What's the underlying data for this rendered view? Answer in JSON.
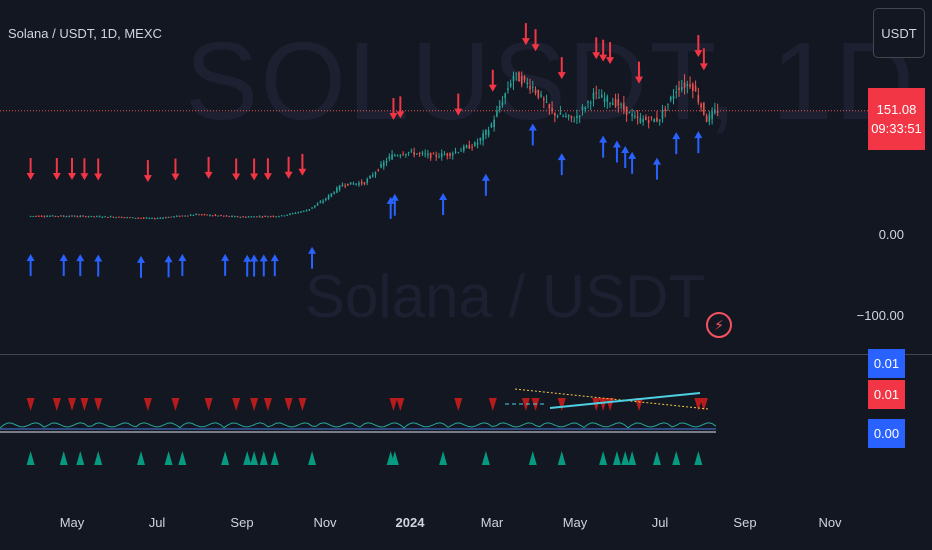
{
  "symbol": "Solana / USDT, 1D, MEXC",
  "watermark": "SOLUSDT, 1D",
  "watermark_sub": "Solana / USDT",
  "currency_button": "USDT",
  "last_price": "151.08",
  "countdown": "09:33:51",
  "y_axis_labels": [
    "0.00",
    "−100.00"
  ],
  "indicator_values": [
    {
      "text": "0.01",
      "color": "#2962ff"
    },
    {
      "text": "0.01",
      "color": "#f23645"
    },
    {
      "text": "0.00",
      "color": "#2962ff"
    }
  ],
  "x_axis_labels": [
    "May",
    "Jul",
    "Sep",
    "Nov",
    "2024",
    "Mar",
    "May",
    "Jul",
    "Sep",
    "Nov"
  ],
  "icons": [
    "bolt-icon"
  ],
  "colors": {
    "up": "#26a69a",
    "down": "#ef5350",
    "sell_arrow": "#f23645",
    "buy_arrow": "#2962ff",
    "background": "#131722"
  },
  "chart_data": {
    "type": "line",
    "title": "",
    "xlabel": "",
    "ylabel": "",
    "x": [
      "2023-04-01",
      "2023-05-01",
      "2023-06-01",
      "2023-07-01",
      "2023-08-01",
      "2023-09-01",
      "2023-10-01",
      "2023-10-20",
      "2023-11-01",
      "2023-11-15",
      "2023-12-01",
      "2023-12-20",
      "2024-01-01",
      "2024-01-20",
      "2024-02-01",
      "2024-02-20",
      "2024-03-01",
      "2024-03-18",
      "2024-04-01",
      "2024-04-15",
      "2024-05-01",
      "2024-05-15",
      "2024-06-01",
      "2024-06-15",
      "2024-07-01",
      "2024-07-15",
      "2024-07-25",
      "2024-08-05",
      "2024-08-12"
    ],
    "series": [
      {
        "values": [
          21,
          21,
          20,
          18,
          23,
          20,
          21,
          28,
          40,
          60,
          62,
          95,
          100,
          95,
          98,
          110,
          130,
          195,
          180,
          148,
          140,
          170,
          160,
          140,
          140,
          180,
          185,
          140,
          151
        ]
      }
    ],
    "ylim": [
      -150,
      260
    ],
    "sell_signal_dates": [
      "2023-04-01",
      "2023-04-20",
      "2023-05-01",
      "2023-05-10",
      "2023-05-20",
      "2023-06-25",
      "2023-07-15",
      "2023-08-08",
      "2023-08-28",
      "2023-09-10",
      "2023-09-20",
      "2023-10-05",
      "2023-10-15",
      "2023-12-20",
      "2023-12-25",
      "2024-02-05",
      "2024-03-01",
      "2024-03-25",
      "2024-04-01",
      "2024-04-20",
      "2024-05-15",
      "2024-05-20",
      "2024-05-25",
      "2024-06-15",
      "2024-07-28",
      "2024-08-01"
    ],
    "buy_signal_dates": [
      "2023-04-01",
      "2023-04-25",
      "2023-05-07",
      "2023-05-20",
      "2023-06-20",
      "2023-07-10",
      "2023-07-20",
      "2023-08-20",
      "2023-09-05",
      "2023-09-10",
      "2023-09-17",
      "2023-09-25",
      "2023-10-22",
      "2023-12-18",
      "2023-12-21",
      "2024-01-25",
      "2024-02-25",
      "2024-03-30",
      "2024-04-20",
      "2024-05-20",
      "2024-05-30",
      "2024-06-05",
      "2024-06-10",
      "2024-06-28",
      "2024-07-12",
      "2024-07-28"
    ]
  }
}
